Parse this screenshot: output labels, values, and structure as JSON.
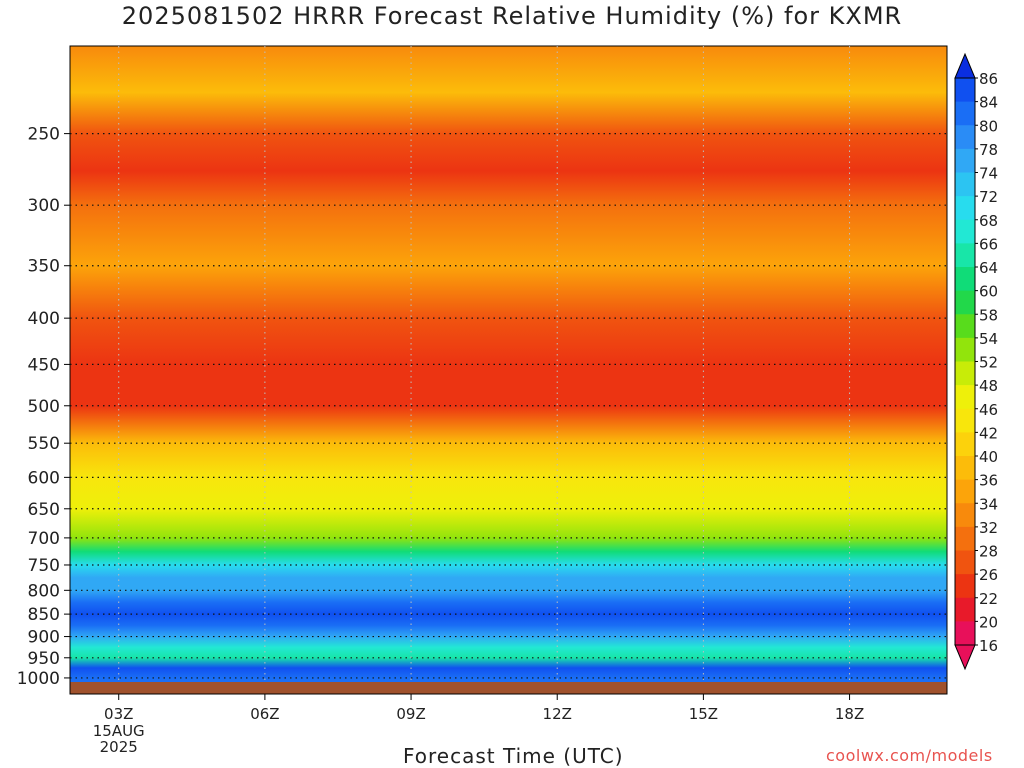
{
  "title": "2025081502 HRRR Forecast Relative Humidity (%) for KXMR",
  "credit": "coolwx.com/models",
  "chart_data": {
    "type": "heatmap",
    "title": "2025081502 HRRR Forecast Relative Humidity (%) for KXMR",
    "xlabel": "Forecast Time (UTC)",
    "ylabel": "",
    "x_ticks": [
      "03Z",
      "06Z",
      "09Z",
      "12Z",
      "15Z",
      "18Z"
    ],
    "x_hours": [
      3,
      6,
      9,
      12,
      15,
      18
    ],
    "xlim_hours": [
      2,
      20
    ],
    "date_label_lines": [
      "15AUG",
      "2025"
    ],
    "y_ticks": [
      250,
      300,
      350,
      400,
      450,
      500,
      550,
      600,
      650,
      700,
      750,
      800,
      850,
      900,
      950,
      1000
    ],
    "y_scale": "log",
    "ylim": [
      1013,
      200
    ],
    "grid": true,
    "colorbar": {
      "position": "right",
      "labels": [
        86,
        84,
        80,
        78,
        74,
        72,
        68,
        66,
        64,
        60,
        58,
        54,
        52,
        48,
        46,
        42,
        40,
        36,
        34,
        32,
        28,
        26,
        22,
        20,
        16
      ],
      "colors": [
        "#0a2ee0",
        "#1050f0",
        "#1a6ef5",
        "#2a8cf6",
        "#30a8f5",
        "#2cc4f2",
        "#28dcee",
        "#22e8d4",
        "#18e6a8",
        "#10dc78",
        "#22d84a",
        "#58dc1c",
        "#92e40c",
        "#c8ec08",
        "#eef00a",
        "#f8e60c",
        "#fcd20c",
        "#fcbc0a",
        "#fca40a",
        "#f88a0c",
        "#f4700e",
        "#f05410",
        "#ec3412",
        "#e81a2a",
        "#e8105a"
      ]
    },
    "profiles": [
      {
        "pressure": 1000,
        "rh": 82
      },
      {
        "pressure": 975,
        "rh": 85
      },
      {
        "pressure": 950,
        "rh": 64
      },
      {
        "pressure": 925,
        "rh": 66
      },
      {
        "pressure": 900,
        "rh": 76
      },
      {
        "pressure": 875,
        "rh": 80
      },
      {
        "pressure": 850,
        "rh": 84
      },
      {
        "pressure": 825,
        "rh": 80
      },
      {
        "pressure": 800,
        "rh": 76
      },
      {
        "pressure": 775,
        "rh": 74
      },
      {
        "pressure": 750,
        "rh": 68
      },
      {
        "pressure": 725,
        "rh": 60
      },
      {
        "pressure": 700,
        "rh": 52
      },
      {
        "pressure": 650,
        "rh": 46
      },
      {
        "pressure": 600,
        "rh": 44
      },
      {
        "pressure": 550,
        "rh": 38
      },
      {
        "pressure": 500,
        "rh": 22
      },
      {
        "pressure": 450,
        "rh": 24
      },
      {
        "pressure": 400,
        "rh": 26
      },
      {
        "pressure": 350,
        "rh": 34
      },
      {
        "pressure": 300,
        "rh": 30
      },
      {
        "pressure": 275,
        "rh": 22
      },
      {
        "pressure": 250,
        "rh": 26
      },
      {
        "pressure": 225,
        "rh": 36
      },
      {
        "pressure": 200,
        "rh": 32
      }
    ],
    "surface_fill": "#a0522d"
  }
}
